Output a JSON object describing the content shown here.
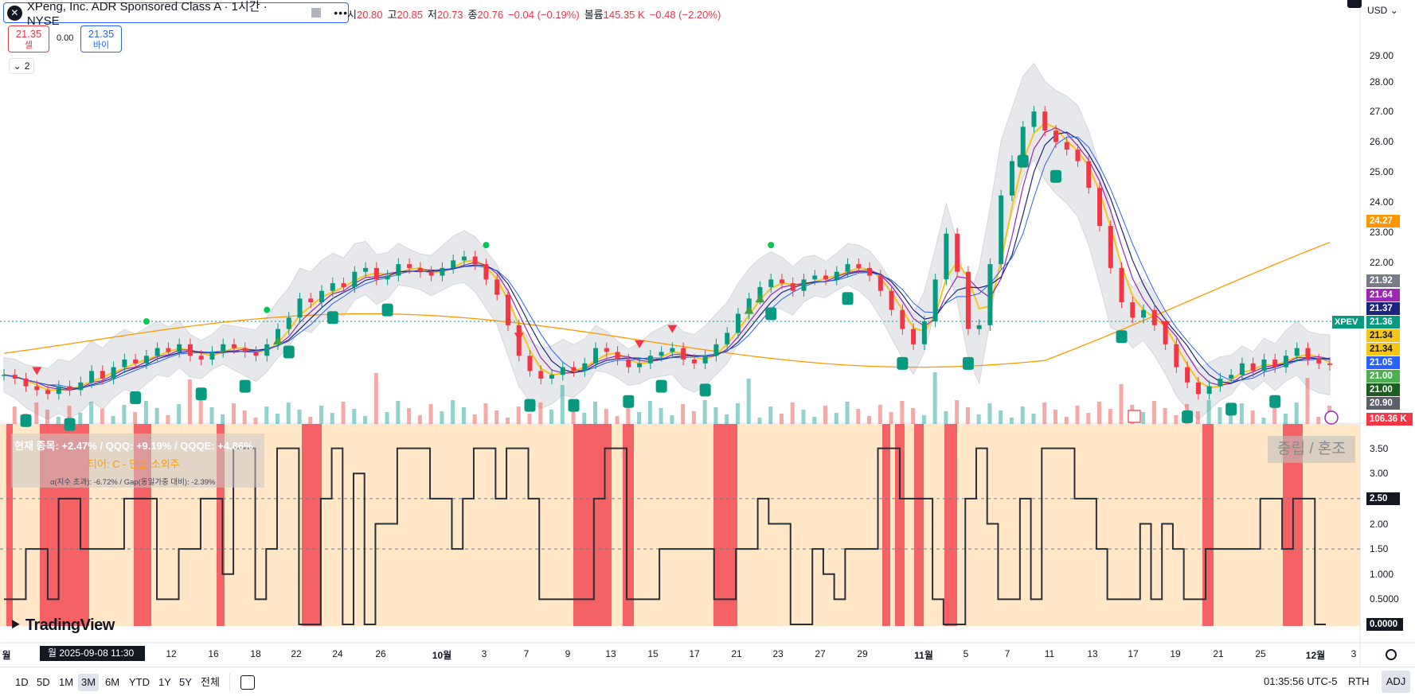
{
  "legend": {
    "symbol_title": "XPeng, Inc. ADR Sponsored Class A · 1시간 · NYSE",
    "dots": "•••",
    "ohlc": [
      {
        "label": "시",
        "value": "20.80"
      },
      {
        "label": "고",
        "value": "20.85"
      },
      {
        "label": "저",
        "value": "20.73"
      },
      {
        "label": "종",
        "value": "20.76"
      },
      {
        "label": "",
        "value": "−0.04 (−0.19%)"
      },
      {
        "label": "볼륨",
        "value": "145.35 K"
      },
      {
        "label": "",
        "value": "−0.48 (−2.20%)"
      }
    ]
  },
  "trade": {
    "sell_price": "21.35",
    "sell_label": "셀",
    "spread": "0.00",
    "buy_price": "21.35",
    "buy_label": "바이",
    "collapse_count": "2"
  },
  "price_axis": {
    "currency": "USD",
    "ticks": [
      "29.00",
      "28.00",
      "27.00",
      "26.00",
      "25.00",
      "24.00",
      "23.00",
      "22.00",
      "21.00"
    ],
    "tags": [
      {
        "text": "24.27",
        "color": "#ff9800"
      },
      {
        "text": "21.92",
        "color": "#787b86"
      },
      {
        "text": "21.64",
        "color": "#9c27b0"
      },
      {
        "text": "21.37",
        "color": "#1a237e"
      },
      {
        "text": "21.36",
        "color": "#089981"
      },
      {
        "text": "21.34",
        "color": "#f5c518"
      },
      {
        "text": "21.34",
        "color": "#f5c518"
      },
      {
        "text": "21.05",
        "color": "#2962ff"
      },
      {
        "text": "21.00",
        "color": "#4caf50"
      },
      {
        "text": "21.00",
        "color": "#1b5e20"
      },
      {
        "text": "20.90",
        "color": "#5d606b"
      },
      {
        "text": "106.36 K",
        "color": "#f23645"
      }
    ],
    "symbol_tag": "XPEV"
  },
  "indicator": {
    "line1": "현재 종목: +2.47% / QQQ: +9.19% / QQQE: +4.86%",
    "line2": "티어: C - 단순 소외주",
    "line3": "α(지수 초과): -6.72% / Gap(동일가중 대비): -2.39%",
    "mood": "중립 / 혼조",
    "ticks": [
      "3.50",
      "3.00",
      "2.50",
      "2.00",
      "1.50",
      "1.000",
      "0.5000",
      "0.0000"
    ]
  },
  "chart_data": {
    "type": "line",
    "price_range": [
      20.5,
      29.6
    ],
    "price_series": [
      21.1,
      21.0,
      20.8,
      20.7,
      20.6,
      20.8,
      20.7,
      20.9,
      21.2,
      21.0,
      21.3,
      21.5,
      21.4,
      21.6,
      21.8,
      21.7,
      21.9,
      21.6,
      21.5,
      21.7,
      21.9,
      21.8,
      21.7,
      21.6,
      21.9,
      22.3,
      22.6,
      23.1,
      23.0,
      23.3,
      23.5,
      23.4,
      23.8,
      23.9,
      23.6,
      23.7,
      24.0,
      23.9,
      23.8,
      23.7,
      23.9,
      24.1,
      24.2,
      24.0,
      23.6,
      23.2,
      22.4,
      21.6,
      21.2,
      21.0,
      21.1,
      21.3,
      21.2,
      21.4,
      21.8,
      21.7,
      21.5,
      21.3,
      21.4,
      21.6,
      21.7,
      21.8,
      21.5,
      21.4,
      21.6,
      21.9,
      22.2,
      22.7,
      23.1,
      23.4,
      23.6,
      23.5,
      23.3,
      23.6,
      23.7,
      23.6,
      23.8,
      24.0,
      23.9,
      23.7,
      23.3,
      22.8,
      22.3,
      21.9,
      22.5,
      23.6,
      24.8,
      23.8,
      22.3,
      22.4,
      24.0,
      25.8,
      26.7,
      27.6,
      28.0,
      27.5,
      27.2,
      27.0,
      26.7,
      26.0,
      25.0,
      23.9,
      23.0,
      22.6,
      22.8,
      22.4,
      21.9,
      21.3,
      20.9,
      20.6,
      20.8,
      21.0,
      21.1,
      21.4,
      21.2,
      21.5,
      21.3,
      21.6,
      21.8,
      21.5,
      21.4,
      21.36
    ],
    "oscillator_range": [
      0,
      4
    ],
    "oscillator_series": [
      0.5,
      0.5,
      1.5,
      1.5,
      0.5,
      2.5,
      2.5,
      1.5,
      1.5,
      1.5,
      1.5,
      2.5,
      2.5,
      2.5,
      0.5,
      0.5,
      1.5,
      1.5,
      2.5,
      2.5,
      1.0,
      3.5,
      3.5,
      0.5,
      1.5,
      3.5,
      3.5,
      0,
      0,
      2.5,
      3.5,
      0,
      3.0,
      0,
      2.0,
      2.0,
      3.5,
      3.5,
      3.5,
      2.5,
      2.5,
      1.5,
      2.5,
      3.5,
      3.5,
      2.5,
      3.5,
      3.5,
      2.5,
      0.5,
      0.5,
      0.5,
      0.5,
      0.5,
      2.5,
      3.5,
      3.5,
      0.5,
      0.5,
      0.5,
      1.5,
      1.5,
      1.5,
      1.5,
      1.5,
      0.5,
      0.5,
      1.5,
      1.5,
      2.5,
      2.0,
      2.0,
      0,
      0,
      1.5,
      1.0,
      0.5,
      1.5,
      1.5,
      1.5,
      3.5,
      3.5,
      2.5,
      2.5,
      2.5,
      0.5,
      0,
      0,
      2.5,
      3.5,
      2.0,
      0.5,
      0.5,
      2.5,
      0.5,
      3.5,
      3.5,
      3.5,
      2.5,
      2.5,
      1.5,
      0.5,
      0.5,
      0.5,
      2.0,
      0.5,
      2.0,
      1.5,
      0.5,
      0.5,
      1.5,
      1.5,
      1.5,
      1.5,
      1.5,
      2.5,
      2.5,
      1.5,
      2.5,
      2.5,
      0,
      0
    ],
    "reference_lines": [
      2.5,
      1.5
    ]
  },
  "time_axis": {
    "labels": [
      "월",
      "12",
      "16",
      "18",
      "22",
      "24",
      "26",
      "10월",
      "3",
      "7",
      "9",
      "13",
      "15",
      "17",
      "21",
      "23",
      "27",
      "29",
      "11월",
      "5",
      "7",
      "11",
      "13",
      "17",
      "19",
      "21",
      "25",
      "12월",
      "3"
    ],
    "cursor": "월 2025-09-08   11:30"
  },
  "toolbar": {
    "ranges": [
      "1D",
      "5D",
      "1M",
      "3M",
      "6M",
      "YTD",
      "1Y",
      "5Y",
      "전체"
    ],
    "active_range": "3M",
    "clock": "01:35:56 UTC-5",
    "rth": "RTH",
    "adj": "ADJ"
  },
  "branding": {
    "text": "TradingView"
  }
}
